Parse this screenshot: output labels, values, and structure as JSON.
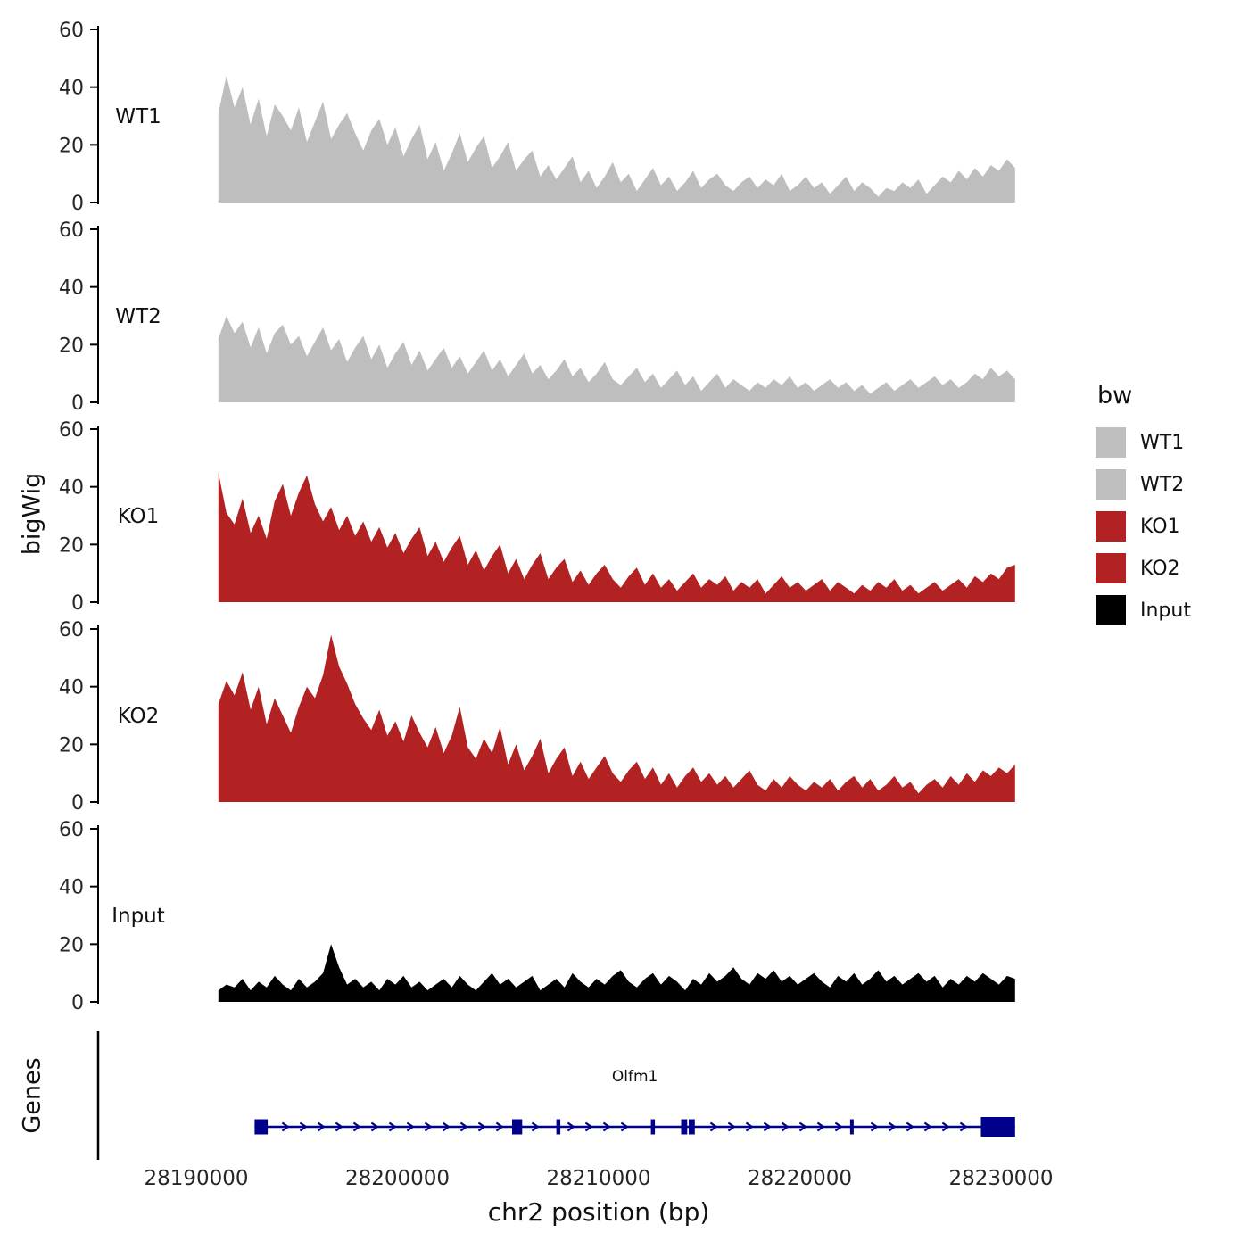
{
  "chart_data": {
    "type": "area",
    "title": "",
    "ylabel": "bigWig",
    "xlabel": "chr2 position (bp)",
    "genes_panel_label": "Genes",
    "y_ticks": [
      0,
      20,
      40,
      60
    ],
    "y_max": 60,
    "grid": false,
    "legend_position": "right",
    "x_ticks": [
      {
        "bp": 28190000,
        "label": "28190000"
      },
      {
        "bp": 28200000,
        "label": "28200000"
      },
      {
        "bp": 28210000,
        "label": "28210000"
      },
      {
        "bp": 28220000,
        "label": "28220000"
      },
      {
        "bp": 28230000,
        "label": "28230000"
      }
    ],
    "x_start_bp": 28191100,
    "x_step_bp": 400,
    "tracks": [
      {
        "name": "WT1",
        "color": "#bebebe",
        "values": [
          31,
          44,
          33,
          40,
          27,
          36,
          23,
          34,
          30,
          25,
          33,
          21,
          28,
          35,
          22,
          27,
          31,
          24,
          18,
          25,
          29,
          20,
          26,
          16,
          22,
          27,
          15,
          21,
          11,
          17,
          24,
          14,
          19,
          23,
          12,
          16,
          21,
          11,
          15,
          18,
          9,
          13,
          8,
          12,
          16,
          7,
          11,
          5,
          9,
          14,
          7,
          10,
          4,
          8,
          12,
          6,
          9,
          4,
          7,
          11,
          5,
          8,
          10,
          6,
          4,
          7,
          9,
          5,
          8,
          6,
          10,
          4,
          6,
          9,
          5,
          7,
          3,
          6,
          9,
          4,
          7,
          5,
          2,
          5,
          4,
          7,
          5,
          8,
          3,
          6,
          9,
          7,
          11,
          8,
          12,
          9,
          13,
          11,
          15,
          12
        ]
      },
      {
        "name": "WT2",
        "color": "#bebebe",
        "values": [
          22,
          30,
          24,
          28,
          19,
          26,
          17,
          24,
          27,
          20,
          23,
          16,
          21,
          26,
          18,
          22,
          14,
          19,
          23,
          15,
          20,
          12,
          17,
          21,
          13,
          18,
          11,
          15,
          19,
          12,
          16,
          10,
          14,
          18,
          11,
          15,
          9,
          13,
          17,
          10,
          13,
          8,
          11,
          15,
          9,
          12,
          7,
          10,
          14,
          8,
          6,
          9,
          12,
          7,
          10,
          5,
          8,
          11,
          6,
          9,
          4,
          7,
          10,
          5,
          8,
          6,
          4,
          7,
          5,
          8,
          6,
          9,
          5,
          7,
          4,
          6,
          8,
          5,
          7,
          4,
          6,
          3,
          5,
          7,
          4,
          6,
          8,
          5,
          7,
          9,
          6,
          8,
          5,
          7,
          10,
          8,
          12,
          9,
          11,
          8
        ]
      },
      {
        "name": "KO1",
        "color": "#b22222",
        "values": [
          45,
          31,
          27,
          36,
          24,
          30,
          22,
          35,
          41,
          30,
          38,
          44,
          34,
          28,
          33,
          25,
          30,
          23,
          28,
          21,
          26,
          19,
          24,
          17,
          22,
          26,
          16,
          21,
          14,
          19,
          23,
          13,
          18,
          11,
          16,
          20,
          10,
          15,
          8,
          13,
          17,
          8,
          12,
          15,
          7,
          11,
          6,
          10,
          13,
          8,
          5,
          9,
          12,
          6,
          10,
          5,
          8,
          4,
          7,
          10,
          5,
          8,
          6,
          9,
          4,
          7,
          5,
          8,
          3,
          6,
          9,
          5,
          7,
          4,
          6,
          8,
          4,
          7,
          5,
          3,
          6,
          4,
          7,
          5,
          8,
          4,
          6,
          3,
          5,
          7,
          4,
          6,
          8,
          5,
          9,
          7,
          10,
          8,
          12,
          13
        ]
      },
      {
        "name": "KO2",
        "color": "#b22222",
        "values": [
          34,
          42,
          37,
          45,
          32,
          40,
          27,
          36,
          30,
          24,
          33,
          40,
          36,
          44,
          58,
          47,
          41,
          34,
          29,
          25,
          32,
          23,
          28,
          21,
          30,
          24,
          19,
          26,
          17,
          23,
          33,
          19,
          15,
          22,
          17,
          26,
          13,
          20,
          11,
          16,
          22,
          10,
          15,
          19,
          9,
          14,
          8,
          12,
          16,
          10,
          7,
          11,
          14,
          8,
          12,
          6,
          10,
          5,
          9,
          12,
          7,
          10,
          6,
          9,
          5,
          8,
          11,
          6,
          4,
          8,
          5,
          9,
          6,
          4,
          7,
          5,
          8,
          4,
          7,
          9,
          5,
          8,
          4,
          6,
          9,
          5,
          7,
          3,
          6,
          8,
          5,
          9,
          6,
          10,
          7,
          11,
          9,
          12,
          10,
          13
        ]
      },
      {
        "name": "Input",
        "color": "#000000",
        "values": [
          4,
          6,
          5,
          8,
          4,
          7,
          5,
          9,
          6,
          4,
          8,
          5,
          7,
          10,
          20,
          12,
          6,
          8,
          5,
          7,
          4,
          8,
          6,
          9,
          5,
          7,
          4,
          6,
          8,
          5,
          9,
          6,
          4,
          7,
          10,
          6,
          8,
          5,
          7,
          9,
          4,
          6,
          8,
          5,
          10,
          7,
          5,
          8,
          6,
          9,
          11,
          7,
          5,
          8,
          10,
          6,
          9,
          7,
          4,
          8,
          6,
          10,
          7,
          9,
          12,
          8,
          6,
          10,
          8,
          11,
          7,
          9,
          6,
          8,
          10,
          7,
          5,
          9,
          7,
          10,
          6,
          8,
          11,
          7,
          9,
          6,
          8,
          10,
          7,
          9,
          5,
          8,
          6,
          9,
          7,
          10,
          8,
          6,
          9,
          8
        ]
      }
    ],
    "gene": {
      "name": "Olfm1",
      "color": "#00008b",
      "strand": "+",
      "start": 28192900,
      "end": 28230700,
      "exons": [
        [
          28192900,
          28193550
        ],
        [
          28205700,
          28206200
        ],
        [
          28207900,
          28208100
        ],
        [
          28212600,
          28212800
        ],
        [
          28214100,
          28214400
        ],
        [
          28214480,
          28214780
        ],
        [
          28222500,
          28222650
        ],
        [
          28229000,
          28230700
        ]
      ]
    }
  },
  "legend": {
    "title": "bw",
    "items": [
      {
        "label": "WT1",
        "color": "#bebebe"
      },
      {
        "label": "WT2",
        "color": "#bebebe"
      },
      {
        "label": "KO1",
        "color": "#b22222"
      },
      {
        "label": "KO2",
        "color": "#b22222"
      },
      {
        "label": "Input",
        "color": "#000000"
      }
    ]
  }
}
